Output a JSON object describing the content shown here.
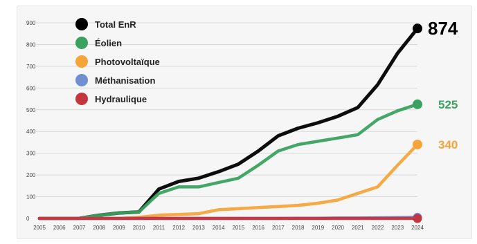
{
  "chart_data": {
    "type": "line",
    "x": [
      2005,
      2006,
      2007,
      2008,
      2009,
      2010,
      2011,
      2012,
      2013,
      2014,
      2015,
      2016,
      2017,
      2018,
      2019,
      2020,
      2021,
      2022,
      2023,
      2024
    ],
    "x_tick_labels": [
      "2005",
      "2006",
      "2007",
      "2008",
      "2009",
      "2010",
      "2011",
      "2012",
      "2013",
      "2014",
      "2015",
      "2016",
      "2017",
      "2018",
      "2019",
      "2020",
      "2021",
      "2022",
      "2023",
      "2024"
    ],
    "y_tick_labels": [
      "0",
      "100",
      "200",
      "300",
      "400",
      "500",
      "600",
      "700",
      "800",
      "900"
    ],
    "ylim": [
      0,
      900
    ],
    "grid": true,
    "legend_position": "top-left",
    "series": [
      {
        "name": "Total EnR",
        "color": "#000000",
        "end_label": "874",
        "values": [
          0,
          0,
          0,
          15,
          25,
          30,
          135,
          170,
          185,
          215,
          250,
          310,
          380,
          415,
          440,
          470,
          510,
          615,
          760,
          874
        ]
      },
      {
        "name": "Éolien",
        "color": "#3aa25f",
        "end_label": "525",
        "values": [
          0,
          0,
          0,
          15,
          25,
          30,
          115,
          145,
          145,
          165,
          185,
          245,
          310,
          340,
          355,
          370,
          385,
          455,
          495,
          525
        ]
      },
      {
        "name": "Photovoltaïque",
        "color": "#f5a43a",
        "end_label": "340",
        "values": [
          0,
          0,
          0,
          0,
          0,
          5,
          15,
          18,
          22,
          40,
          45,
          50,
          55,
          60,
          70,
          85,
          115,
          145,
          245,
          340
        ]
      },
      {
        "name": "Méthanisation",
        "color": "#6f8fd0",
        "values": [
          0,
          0,
          0,
          0,
          0,
          0,
          0,
          0,
          0,
          0,
          0,
          0,
          0,
          1,
          1,
          2,
          2,
          3,
          4,
          5
        ]
      },
      {
        "name": "Hydraulique",
        "color": "#c4363f",
        "values": [
          0,
          0,
          0,
          0,
          0,
          0,
          0,
          0,
          0,
          0,
          0,
          0,
          0,
          0,
          0,
          0,
          0,
          0,
          0,
          0
        ]
      }
    ]
  }
}
